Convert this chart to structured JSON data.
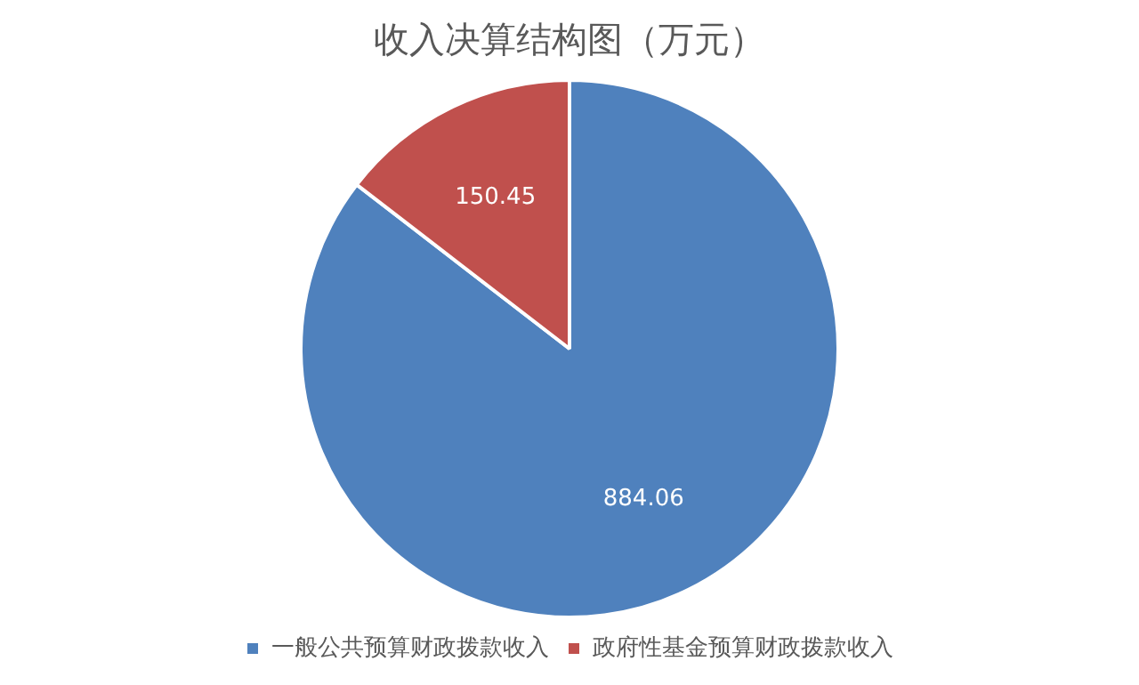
{
  "chart_data": {
    "type": "pie",
    "title": "收入决算结构图（万元）",
    "categories": [
      "一般公共预算财政拨款收入",
      "政府性基金预算财政拨款收入"
    ],
    "values": [
      884.06,
      150.45
    ],
    "colors": [
      "#4f81bd",
      "#c0504d"
    ],
    "data_labels": true,
    "legend": "bottom"
  }
}
